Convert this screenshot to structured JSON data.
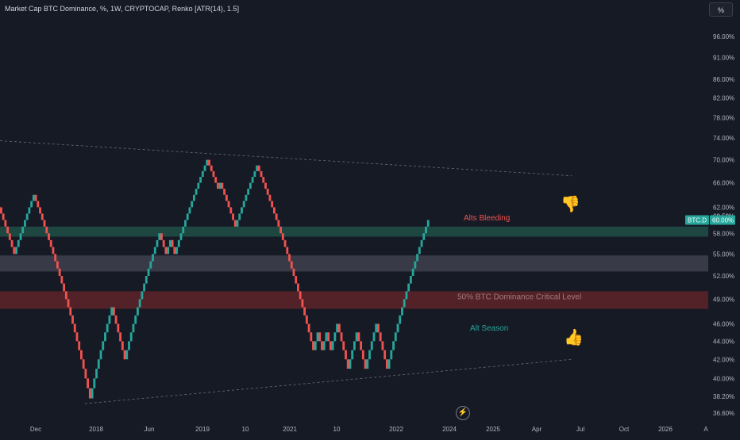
{
  "header": {
    "title": "Market Cap BTC Dominance, %, 1W, CRYPTOCAP, Renko [ATR(14), 1.5]",
    "scale_button": "%"
  },
  "symbol_badge": "BTC.D",
  "colors": {
    "background": "#161a25",
    "up": "#26a69a",
    "down": "#ef5350",
    "green_zone": "#1f4c46",
    "gray_zone": "#3c3f4b",
    "red_zone": "#5a2429",
    "text": "#d1d4dc",
    "axis_text": "#b2b5be"
  },
  "icons": {
    "thumbs_down": "thumbs-down-icon",
    "thumbs_up": "thumbs-up-icon",
    "go_to_realtime": "lightning-icon"
  },
  "chart_data": {
    "type": "renko",
    "title": "Market Cap BTC Dominance, %, 1W, CRYPTOCAP, Renko [ATR(14), 1.5]",
    "y_scale": "log",
    "ylim": [
      36.0,
      100.0
    ],
    "y_ticks": [
      "96.00%",
      "91.00%",
      "86.00%",
      "82.00%",
      "78.00%",
      "74.00%",
      "70.00%",
      "66.00%",
      "62.00%",
      "58.00%",
      "55.00%",
      "52.00%",
      "49.00%",
      "46.00%",
      "44.00%",
      "42.00%",
      "40.00%",
      "38.20%",
      "36.60%"
    ],
    "x_ticks": [
      "Dec",
      "2018",
      "Jun",
      "2019",
      "10",
      "2021",
      "10",
      "2022",
      "2024",
      "2025",
      "Apr",
      "Jul",
      "Oct",
      "2026",
      "A"
    ],
    "last_price_label": "60.00%",
    "previous_level_label": "60.59%",
    "bricks": [
      {
        "open": 62.0,
        "close": 61.0
      },
      {
        "open": 61.0,
        "close": 60.0
      },
      {
        "open": 60.0,
        "close": 59.0
      },
      {
        "open": 59.0,
        "close": 58.0
      },
      {
        "open": 58.0,
        "close": 57.0
      },
      {
        "open": 57.0,
        "close": 56.0
      },
      {
        "open": 56.0,
        "close": 55.0
      },
      {
        "open": 55.0,
        "close": 56.0
      },
      {
        "open": 56.0,
        "close": 57.0
      },
      {
        "open": 57.0,
        "close": 58.0
      },
      {
        "open": 58.0,
        "close": 59.0
      },
      {
        "open": 59.0,
        "close": 60.0
      },
      {
        "open": 60.0,
        "close": 61.0
      },
      {
        "open": 61.0,
        "close": 62.0
      },
      {
        "open": 62.0,
        "close": 63.0
      },
      {
        "open": 63.0,
        "close": 64.0
      },
      {
        "open": 64.0,
        "close": 63.0
      },
      {
        "open": 63.0,
        "close": 62.0
      },
      {
        "open": 62.0,
        "close": 61.0
      },
      {
        "open": 61.0,
        "close": 60.0
      },
      {
        "open": 60.0,
        "close": 59.0
      },
      {
        "open": 59.0,
        "close": 58.0
      },
      {
        "open": 58.0,
        "close": 57.0
      },
      {
        "open": 57.0,
        "close": 56.0
      },
      {
        "open": 56.0,
        "close": 55.0
      },
      {
        "open": 55.0,
        "close": 54.0
      },
      {
        "open": 54.0,
        "close": 53.0
      },
      {
        "open": 53.0,
        "close": 52.0
      },
      {
        "open": 52.0,
        "close": 51.0
      },
      {
        "open": 51.0,
        "close": 50.0
      },
      {
        "open": 50.0,
        "close": 49.0
      },
      {
        "open": 49.0,
        "close": 48.0
      },
      {
        "open": 48.0,
        "close": 47.0
      },
      {
        "open": 47.0,
        "close": 46.0
      },
      {
        "open": 46.0,
        "close": 45.0
      },
      {
        "open": 45.0,
        "close": 44.0
      },
      {
        "open": 44.0,
        "close": 43.0
      },
      {
        "open": 43.0,
        "close": 42.0
      },
      {
        "open": 42.0,
        "close": 41.0
      },
      {
        "open": 41.0,
        "close": 40.0
      },
      {
        "open": 40.0,
        "close": 39.0
      },
      {
        "open": 39.0,
        "close": 38.0
      },
      {
        "open": 38.0,
        "close": 39.0
      },
      {
        "open": 39.0,
        "close": 40.0
      },
      {
        "open": 40.0,
        "close": 41.0
      },
      {
        "open": 41.0,
        "close": 42.0
      },
      {
        "open": 42.0,
        "close": 43.0
      },
      {
        "open": 43.0,
        "close": 44.0
      },
      {
        "open": 44.0,
        "close": 45.0
      },
      {
        "open": 45.0,
        "close": 46.0
      },
      {
        "open": 46.0,
        "close": 47.0
      },
      {
        "open": 47.0,
        "close": 48.0
      },
      {
        "open": 48.0,
        "close": 47.0
      },
      {
        "open": 47.0,
        "close": 46.0
      },
      {
        "open": 46.0,
        "close": 45.0
      },
      {
        "open": 45.0,
        "close": 44.0
      },
      {
        "open": 44.0,
        "close": 43.0
      },
      {
        "open": 43.0,
        "close": 42.0
      },
      {
        "open": 42.0,
        "close": 43.0
      },
      {
        "open": 43.0,
        "close": 44.0
      },
      {
        "open": 44.0,
        "close": 45.0
      },
      {
        "open": 45.0,
        "close": 46.0
      },
      {
        "open": 46.0,
        "close": 47.0
      },
      {
        "open": 47.0,
        "close": 48.0
      },
      {
        "open": 48.0,
        "close": 49.0
      },
      {
        "open": 49.0,
        "close": 50.0
      },
      {
        "open": 50.0,
        "close": 51.0
      },
      {
        "open": 51.0,
        "close": 52.0
      },
      {
        "open": 52.0,
        "close": 53.0
      },
      {
        "open": 53.0,
        "close": 54.0
      },
      {
        "open": 54.0,
        "close": 55.0
      },
      {
        "open": 55.0,
        "close": 56.0
      },
      {
        "open": 56.0,
        "close": 57.0
      },
      {
        "open": 57.0,
        "close": 58.0
      },
      {
        "open": 58.0,
        "close": 57.0
      },
      {
        "open": 57.0,
        "close": 56.0
      },
      {
        "open": 56.0,
        "close": 55.0
      },
      {
        "open": 55.0,
        "close": 56.0
      },
      {
        "open": 56.0,
        "close": 57.0
      },
      {
        "open": 57.0,
        "close": 56.0
      },
      {
        "open": 56.0,
        "close": 55.0
      },
      {
        "open": 55.0,
        "close": 56.0
      },
      {
        "open": 56.0,
        "close": 57.0
      },
      {
        "open": 57.0,
        "close": 58.0
      },
      {
        "open": 58.0,
        "close": 59.0
      },
      {
        "open": 59.0,
        "close": 60.0
      },
      {
        "open": 60.0,
        "close": 61.0
      },
      {
        "open": 61.0,
        "close": 62.0
      },
      {
        "open": 62.0,
        "close": 63.0
      },
      {
        "open": 63.0,
        "close": 64.0
      },
      {
        "open": 64.0,
        "close": 65.0
      },
      {
        "open": 65.0,
        "close": 66.0
      },
      {
        "open": 66.0,
        "close": 67.0
      },
      {
        "open": 67.0,
        "close": 68.0
      },
      {
        "open": 68.0,
        "close": 69.0
      },
      {
        "open": 69.0,
        "close": 70.0
      },
      {
        "open": 70.0,
        "close": 69.0
      },
      {
        "open": 69.0,
        "close": 68.0
      },
      {
        "open": 68.0,
        "close": 67.0
      },
      {
        "open": 67.0,
        "close": 66.0
      },
      {
        "open": 66.0,
        "close": 65.0
      },
      {
        "open": 65.0,
        "close": 66.0
      },
      {
        "open": 66.0,
        "close": 65.0
      },
      {
        "open": 65.0,
        "close": 64.0
      },
      {
        "open": 64.0,
        "close": 63.0
      },
      {
        "open": 63.0,
        "close": 62.0
      },
      {
        "open": 62.0,
        "close": 61.0
      },
      {
        "open": 61.0,
        "close": 60.0
      },
      {
        "open": 60.0,
        "close": 59.0
      },
      {
        "open": 59.0,
        "close": 60.0
      },
      {
        "open": 60.0,
        "close": 61.0
      },
      {
        "open": 61.0,
        "close": 62.0
      },
      {
        "open": 62.0,
        "close": 63.0
      },
      {
        "open": 63.0,
        "close": 64.0
      },
      {
        "open": 64.0,
        "close": 65.0
      },
      {
        "open": 65.0,
        "close": 66.0
      },
      {
        "open": 66.0,
        "close": 67.0
      },
      {
        "open": 67.0,
        "close": 68.0
      },
      {
        "open": 68.0,
        "close": 69.0
      },
      {
        "open": 69.0,
        "close": 68.0
      },
      {
        "open": 68.0,
        "close": 67.0
      },
      {
        "open": 67.0,
        "close": 66.0
      },
      {
        "open": 66.0,
        "close": 65.0
      },
      {
        "open": 65.0,
        "close": 64.0
      },
      {
        "open": 64.0,
        "close": 63.0
      },
      {
        "open": 63.0,
        "close": 62.0
      },
      {
        "open": 62.0,
        "close": 61.0
      },
      {
        "open": 61.0,
        "close": 60.0
      },
      {
        "open": 60.0,
        "close": 59.0
      },
      {
        "open": 59.0,
        "close": 58.0
      },
      {
        "open": 58.0,
        "close": 57.0
      },
      {
        "open": 57.0,
        "close": 56.0
      },
      {
        "open": 56.0,
        "close": 55.0
      },
      {
        "open": 55.0,
        "close": 54.0
      },
      {
        "open": 54.0,
        "close": 53.0
      },
      {
        "open": 53.0,
        "close": 52.0
      },
      {
        "open": 52.0,
        "close": 51.0
      },
      {
        "open": 51.0,
        "close": 50.0
      },
      {
        "open": 50.0,
        "close": 49.0
      },
      {
        "open": 49.0,
        "close": 48.0
      },
      {
        "open": 48.0,
        "close": 47.0
      },
      {
        "open": 47.0,
        "close": 46.0
      },
      {
        "open": 46.0,
        "close": 45.0
      },
      {
        "open": 45.0,
        "close": 44.0
      },
      {
        "open": 44.0,
        "close": 43.0
      },
      {
        "open": 43.0,
        "close": 44.0
      },
      {
        "open": 44.0,
        "close": 45.0
      },
      {
        "open": 45.0,
        "close": 44.0
      },
      {
        "open": 44.0,
        "close": 43.0
      },
      {
        "open": 43.0,
        "close": 44.0
      },
      {
        "open": 44.0,
        "close": 45.0
      },
      {
        "open": 45.0,
        "close": 44.0
      },
      {
        "open": 44.0,
        "close": 43.0
      },
      {
        "open": 43.0,
        "close": 44.0
      },
      {
        "open": 44.0,
        "close": 45.0
      },
      {
        "open": 45.0,
        "close": 46.0
      },
      {
        "open": 46.0,
        "close": 45.0
      },
      {
        "open": 45.0,
        "close": 44.0
      },
      {
        "open": 44.0,
        "close": 43.0
      },
      {
        "open": 43.0,
        "close": 42.0
      },
      {
        "open": 42.0,
        "close": 41.0
      },
      {
        "open": 41.0,
        "close": 42.0
      },
      {
        "open": 42.0,
        "close": 43.0
      },
      {
        "open": 43.0,
        "close": 44.0
      },
      {
        "open": 44.0,
        "close": 45.0
      },
      {
        "open": 45.0,
        "close": 44.0
      },
      {
        "open": 44.0,
        "close": 43.0
      },
      {
        "open": 43.0,
        "close": 42.0
      },
      {
        "open": 42.0,
        "close": 41.0
      },
      {
        "open": 41.0,
        "close": 42.0
      },
      {
        "open": 42.0,
        "close": 43.0
      },
      {
        "open": 43.0,
        "close": 44.0
      },
      {
        "open": 44.0,
        "close": 45.0
      },
      {
        "open": 45.0,
        "close": 46.0
      },
      {
        "open": 46.0,
        "close": 45.0
      },
      {
        "open": 45.0,
        "close": 44.0
      },
      {
        "open": 44.0,
        "close": 43.0
      },
      {
        "open": 43.0,
        "close": 42.0
      },
      {
        "open": 42.0,
        "close": 41.0
      },
      {
        "open": 41.0,
        "close": 42.0
      },
      {
        "open": 42.0,
        "close": 43.0
      },
      {
        "open": 43.0,
        "close": 44.0
      },
      {
        "open": 44.0,
        "close": 45.0
      },
      {
        "open": 45.0,
        "close": 46.0
      },
      {
        "open": 46.0,
        "close": 47.0
      },
      {
        "open": 47.0,
        "close": 48.0
      },
      {
        "open": 48.0,
        "close": 49.0
      },
      {
        "open": 49.0,
        "close": 50.0
      },
      {
        "open": 50.0,
        "close": 51.0
      },
      {
        "open": 51.0,
        "close": 52.0
      },
      {
        "open": 52.0,
        "close": 53.0
      },
      {
        "open": 53.0,
        "close": 54.0
      },
      {
        "open": 54.0,
        "close": 55.0
      },
      {
        "open": 55.0,
        "close": 56.0
      },
      {
        "open": 56.0,
        "close": 57.0
      },
      {
        "open": 57.0,
        "close": 58.0
      },
      {
        "open": 58.0,
        "close": 59.0
      },
      {
        "open": 59.0,
        "close": 60.0
      }
    ],
    "zones": [
      {
        "name": "green-zone",
        "from": 57.5,
        "to": 59.0
      },
      {
        "name": "gray-zone",
        "from": 52.6,
        "to": 54.8
      },
      {
        "name": "red-zone",
        "from": 47.8,
        "to": 50.0
      }
    ],
    "trend_lines": [
      {
        "name": "upper-trend-line",
        "from": {
          "brick": 0,
          "value": 73.5
        },
        "to": {
          "brick": 326,
          "value": 67.2
        }
      },
      {
        "name": "lower-trend-line",
        "from": {
          "brick": 60,
          "value": 37.5
        },
        "to": {
          "brick": 326,
          "value": 42.0
        }
      }
    ],
    "annotations": [
      {
        "name": "annotation-alts-bleeding",
        "text": "Alts Bleeding",
        "color": "#ef5350",
        "value": 60.3
      },
      {
        "name": "annotation-critical-level",
        "text": "50% BTC Dominance Critical Level",
        "color": "#a07a7a",
        "value": 49.3
      },
      {
        "name": "annotation-alt-season",
        "text": "Alt Season",
        "color": "#26a69a",
        "value": 45.5
      }
    ]
  }
}
